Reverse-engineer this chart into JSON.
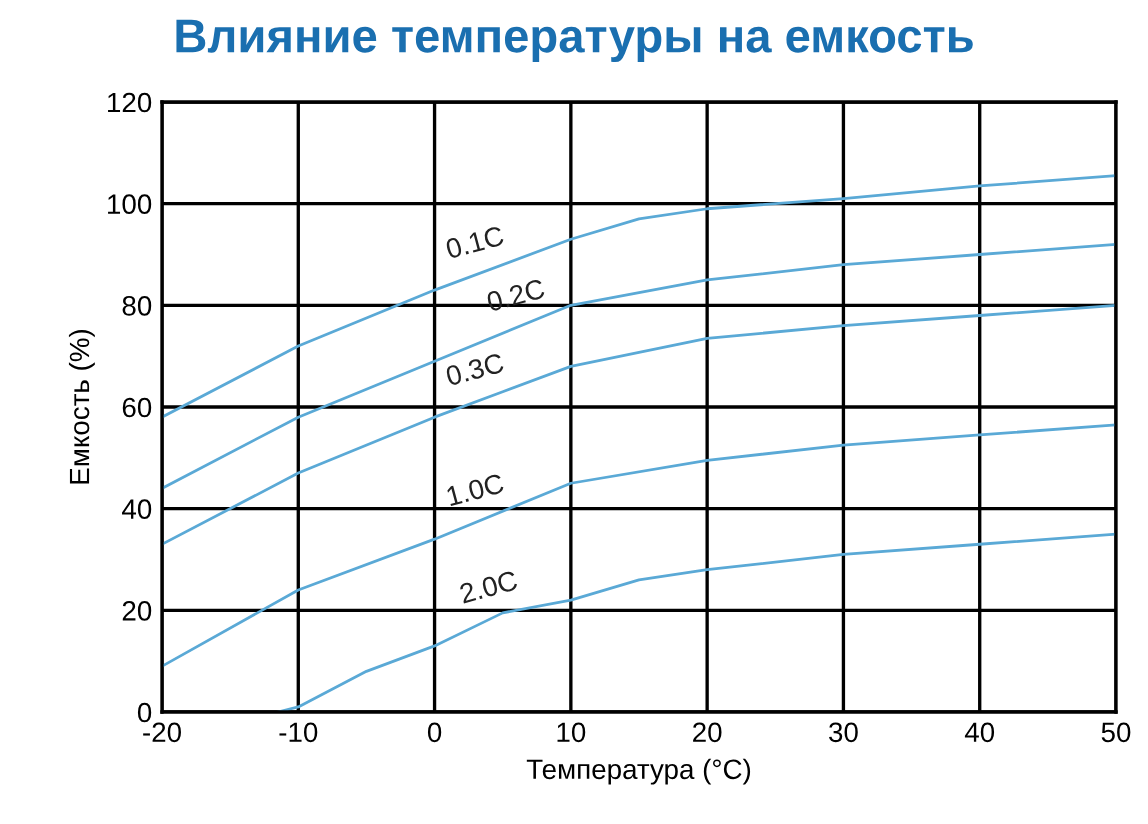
{
  "chart_data": {
    "type": "line",
    "title": "Влияние температуры на емкость",
    "xlabel": "Температура (°C)",
    "ylabel": "Емкость (%)",
    "xlim": [
      -20,
      50
    ],
    "xticks": [
      -20,
      -10,
      0,
      10,
      20,
      30,
      40,
      50
    ],
    "ylim": [
      0,
      120
    ],
    "yticks": [
      0,
      20,
      40,
      60,
      80,
      100,
      120
    ],
    "grid": true,
    "legend": false,
    "marker": "none",
    "line_style": "solid",
    "series": [
      {
        "name": "0.1C",
        "color": "#5aa9d6",
        "x": [
          -20,
          -10,
          0,
          10,
          15,
          20,
          30,
          40,
          50
        ],
        "values": [
          58,
          72,
          83,
          93,
          97,
          99,
          101,
          103.5,
          105.5
        ]
      },
      {
        "name": "0.2C",
        "color": "#5aa9d6",
        "x": [
          -20,
          -10,
          0,
          10,
          20,
          30,
          40,
          50
        ],
        "values": [
          44,
          58,
          69,
          80,
          85,
          88,
          90,
          92
        ]
      },
      {
        "name": "0.3C",
        "color": "#5aa9d6",
        "x": [
          -20,
          -10,
          0,
          5,
          10,
          20,
          30,
          40,
          50
        ],
        "values": [
          33,
          47,
          58,
          63,
          68,
          73.5,
          76,
          78,
          80
        ]
      },
      {
        "name": "1.0C",
        "color": "#5aa9d6",
        "x": [
          -20,
          -10,
          0,
          10,
          20,
          30,
          40,
          50
        ],
        "values": [
          9,
          24,
          34,
          45,
          49.5,
          52.5,
          54.5,
          56.5
        ]
      },
      {
        "name": "2.0C",
        "color": "#5aa9d6",
        "x": [
          -11.5,
          -10,
          -5,
          0,
          5,
          10,
          15,
          20,
          30,
          40,
          50
        ],
        "values": [
          0,
          1,
          8,
          13,
          19.5,
          22,
          26,
          28,
          31,
          33,
          35
        ]
      }
    ]
  }
}
